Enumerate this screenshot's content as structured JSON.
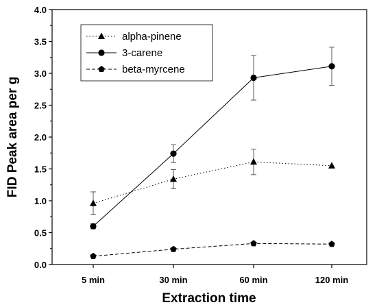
{
  "chart_data": {
    "type": "line",
    "title": "",
    "xlabel": "Extraction time",
    "ylabel": "FID Peak area per g",
    "categories": [
      "5 min",
      "30 min",
      "60 min",
      "120 min"
    ],
    "ylim": [
      0,
      4.0
    ],
    "yticks": [
      "0.0",
      "0.5",
      "1.0",
      "1.5",
      "2.0",
      "2.5",
      "3.0",
      "3.5",
      "4.0"
    ],
    "grid": false,
    "legend_position": "top-left",
    "series": [
      {
        "name": "alpha-pinene",
        "marker": "triangle",
        "line_style": "dotted",
        "values": [
          0.96,
          1.34,
          1.61,
          1.55
        ],
        "errors": [
          0.18,
          0.15,
          0.2,
          0.0
        ]
      },
      {
        "name": "3-carene",
        "marker": "circle",
        "line_style": "solid",
        "values": [
          0.6,
          1.74,
          2.93,
          3.11
        ],
        "errors": [
          0.04,
          0.14,
          0.35,
          0.3
        ]
      },
      {
        "name": "beta-myrcene",
        "marker": "pentagon",
        "line_style": "dashed",
        "values": [
          0.13,
          0.24,
          0.33,
          0.32
        ],
        "errors": [
          0.0,
          0.0,
          0.0,
          0.0
        ]
      }
    ]
  }
}
